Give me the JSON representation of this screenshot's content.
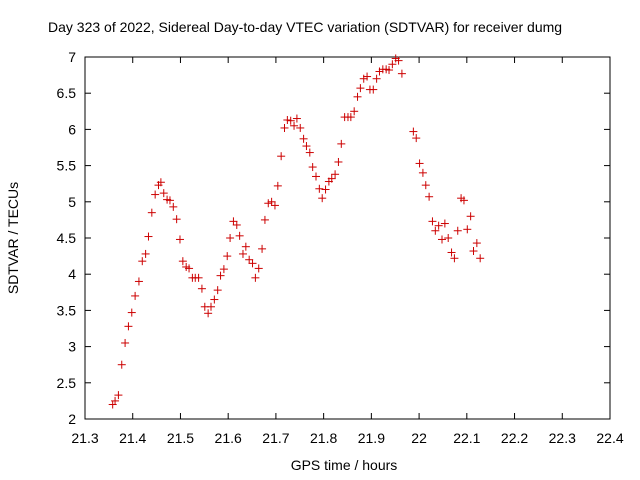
{
  "chart_data": {
    "type": "scatter",
    "title": "Day 323 of 2022, Sidereal Day-to-day VTEC variation (SDTVAR) for receiver dumg",
    "xlabel": "GPS time / hours",
    "ylabel": "SDTVAR / TECUs",
    "xlim": [
      21.3,
      22.4
    ],
    "ylim": [
      2,
      7
    ],
    "x_ticks": [
      "21.3",
      "21.4",
      "21.5",
      "21.6",
      "21.7",
      "21.8",
      "21.9",
      "22",
      "22.1",
      "22.2",
      "22.3",
      "22.4"
    ],
    "y_ticks": [
      "2",
      "2.5",
      "3",
      "3.5",
      "4",
      "4.5",
      "5",
      "5.5",
      "6",
      "6.5",
      "7"
    ],
    "grid": false,
    "legend": "none",
    "marker": "+",
    "marker_color": "#cc0000",
    "series": [
      {
        "name": "SDTVAR",
        "points": [
          [
            21.358,
            2.2
          ],
          [
            21.363,
            2.25
          ],
          [
            21.37,
            2.33
          ],
          [
            21.377,
            2.75
          ],
          [
            21.384,
            3.05
          ],
          [
            21.391,
            3.28
          ],
          [
            21.398,
            3.47
          ],
          [
            21.405,
            3.7
          ],
          [
            21.413,
            3.9
          ],
          [
            21.42,
            4.18
          ],
          [
            21.427,
            4.28
          ],
          [
            21.433,
            4.52
          ],
          [
            21.44,
            4.85
          ],
          [
            21.447,
            5.1
          ],
          [
            21.454,
            5.23
          ],
          [
            21.459,
            5.27
          ],
          [
            21.465,
            5.12
          ],
          [
            21.472,
            5.03
          ],
          [
            21.478,
            5.02
          ],
          [
            21.485,
            4.93
          ],
          [
            21.492,
            4.76
          ],
          [
            21.499,
            4.48
          ],
          [
            21.505,
            4.18
          ],
          [
            21.512,
            4.1
          ],
          [
            21.518,
            4.08
          ],
          [
            21.525,
            3.95
          ],
          [
            21.531,
            3.95
          ],
          [
            21.538,
            3.95
          ],
          [
            21.545,
            3.8
          ],
          [
            21.551,
            3.55
          ],
          [
            21.558,
            3.46
          ],
          [
            21.564,
            3.55
          ],
          [
            21.571,
            3.65
          ],
          [
            21.578,
            3.78
          ],
          [
            21.584,
            3.98
          ],
          [
            21.591,
            4.07
          ],
          [
            21.598,
            4.25
          ],
          [
            21.604,
            4.5
          ],
          [
            21.611,
            4.73
          ],
          [
            21.618,
            4.68
          ],
          [
            21.624,
            4.53
          ],
          [
            21.631,
            4.28
          ],
          [
            21.637,
            4.38
          ],
          [
            21.644,
            4.2
          ],
          [
            21.651,
            4.15
          ],
          [
            21.657,
            3.95
          ],
          [
            21.664,
            4.08
          ],
          [
            21.671,
            4.35
          ],
          [
            21.677,
            4.75
          ],
          [
            21.684,
            4.98
          ],
          [
            21.691,
            5.0
          ],
          [
            21.698,
            4.95
          ],
          [
            21.704,
            5.22
          ],
          [
            21.711,
            5.63
          ],
          [
            21.718,
            6.02
          ],
          [
            21.724,
            6.13
          ],
          [
            21.731,
            6.12
          ],
          [
            21.738,
            6.05
          ],
          [
            21.744,
            6.15
          ],
          [
            21.751,
            6.02
          ],
          [
            21.758,
            5.87
          ],
          [
            21.764,
            5.77
          ],
          [
            21.771,
            5.68
          ],
          [
            21.777,
            5.48
          ],
          [
            21.784,
            5.35
          ],
          [
            21.791,
            5.18
          ],
          [
            21.797,
            5.05
          ],
          [
            21.804,
            5.17
          ],
          [
            21.811,
            5.28
          ],
          [
            21.817,
            5.32
          ],
          [
            21.824,
            5.38
          ],
          [
            21.831,
            5.55
          ],
          [
            21.837,
            5.8
          ],
          [
            21.844,
            6.17
          ],
          [
            21.851,
            6.17
          ],
          [
            21.857,
            6.17
          ],
          [
            21.864,
            6.25
          ],
          [
            21.871,
            6.45
          ],
          [
            21.877,
            6.57
          ],
          [
            21.884,
            6.7
          ],
          [
            21.891,
            6.73
          ],
          [
            21.897,
            6.55
          ],
          [
            21.904,
            6.55
          ],
          [
            21.911,
            6.7
          ],
          [
            21.917,
            6.8
          ],
          [
            21.924,
            6.83
          ],
          [
            21.931,
            6.83
          ],
          [
            21.937,
            6.82
          ],
          [
            21.944,
            6.9
          ],
          [
            21.951,
            6.98
          ],
          [
            21.957,
            6.95
          ],
          [
            21.964,
            6.77
          ],
          [
            21.988,
            5.97
          ],
          [
            21.994,
            5.88
          ],
          [
            22.001,
            5.53
          ],
          [
            22.008,
            5.4
          ],
          [
            22.014,
            5.23
          ],
          [
            22.021,
            5.07
          ],
          [
            22.028,
            4.73
          ],
          [
            22.034,
            4.6
          ],
          [
            22.041,
            4.67
          ],
          [
            22.048,
            4.48
          ],
          [
            22.054,
            4.7
          ],
          [
            22.061,
            4.5
          ],
          [
            22.068,
            4.3
          ],
          [
            22.074,
            4.22
          ],
          [
            22.081,
            4.6
          ],
          [
            22.088,
            5.05
          ],
          [
            22.094,
            5.02
          ],
          [
            22.101,
            4.62
          ],
          [
            22.108,
            4.8
          ],
          [
            22.114,
            4.32
          ],
          [
            22.121,
            4.43
          ],
          [
            22.128,
            4.22
          ]
        ]
      }
    ]
  }
}
